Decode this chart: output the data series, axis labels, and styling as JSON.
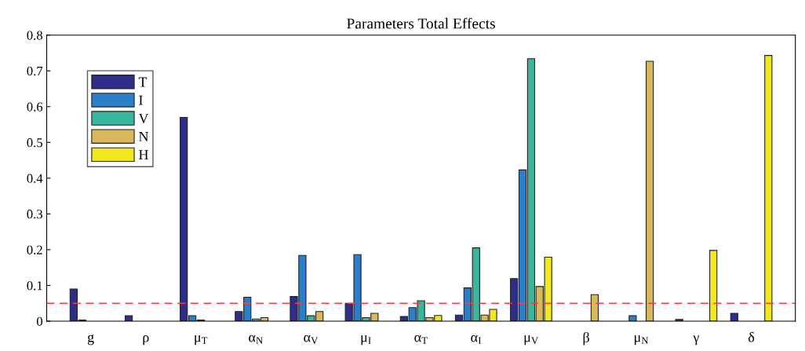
{
  "chart_data": {
    "type": "bar",
    "title": "Parameters Total Effects",
    "categories": [
      "g",
      "ρ",
      "μ$_{T}$",
      "α$_{N}$",
      "α$_{V}$",
      "μ$_{I}$",
      "α$_{T}$",
      "α$_{I}$",
      "μ$_{V}$",
      "β",
      "μ$_{N}$",
      "γ",
      "δ"
    ],
    "series": [
      {
        "name": "T",
        "color": "#2e2e8a",
        "values": [
          0.09,
          0.015,
          0.57,
          0.027,
          0.069,
          0.05,
          0.013,
          0.017,
          0.119,
          null,
          null,
          0.005,
          0.022
        ]
      },
      {
        "name": "I",
        "color": "#2b7fc9",
        "values": [
          0.003,
          null,
          0.015,
          0.067,
          0.184,
          0.186,
          0.038,
          0.093,
          0.423,
          null,
          0.015,
          null,
          null
        ]
      },
      {
        "name": "V",
        "color": "#39b79e",
        "values": [
          null,
          null,
          0.003,
          0.006,
          0.015,
          0.01,
          0.057,
          0.205,
          0.734,
          null,
          null,
          null,
          null
        ]
      },
      {
        "name": "N",
        "color": "#d8b85a",
        "values": [
          null,
          null,
          null,
          0.01,
          0.027,
          0.022,
          0.01,
          0.017,
          0.097,
          0.074,
          0.727,
          null,
          null
        ]
      },
      {
        "name": "H",
        "color": "#f2e81e",
        "values": [
          null,
          null,
          null,
          null,
          null,
          null,
          0.016,
          0.033,
          0.179,
          null,
          null,
          0.198,
          0.743
        ]
      }
    ],
    "ylim": [
      0,
      0.8
    ],
    "yticks": [
      0,
      0.1,
      0.2,
      0.3,
      0.4,
      0.5,
      0.6,
      0.7,
      0.8
    ],
    "ref_lines": [
      {
        "axis": "y",
        "value": 0.05,
        "color": "#ff3b3b",
        "line_style": "dashed"
      }
    ],
    "legend": "top left",
    "grid": false
  }
}
